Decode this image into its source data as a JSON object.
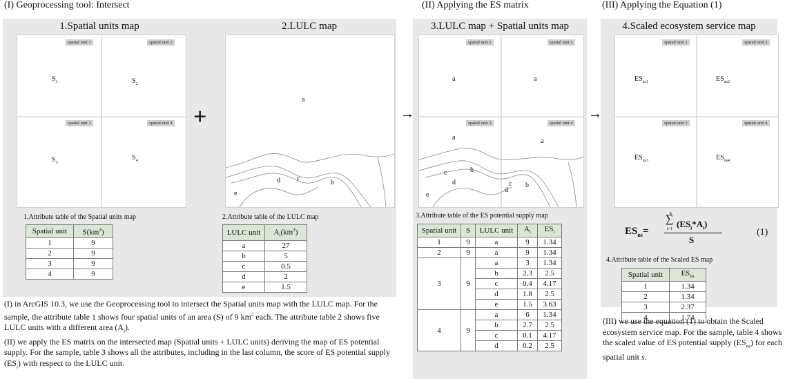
{
  "headers": {
    "h1": "(I) Geoprocessing tool: Intersect",
    "h2": "(II) Applying the ES matrix",
    "h3": "(III) Applying the Equation (1)"
  },
  "panel1": {
    "map1_title": "1.Spatial units map",
    "map2_title": "2.LULC map",
    "table1_title": "1.Attribute table of the Spatial units map",
    "table2_title": "2.Attribute table of the LULC map"
  },
  "panel2": {
    "map3_title": "3.LULC map + Spatial units map",
    "table3_title": "3.Attribute table of the ES potential supply map"
  },
  "panel3": {
    "map4_title": "4.Scaled ecosystem service map",
    "table4_title": "4.Attribute table of the Scaled ES map"
  },
  "tags": [
    "spatial unit 1",
    "spatial unit 2",
    "spatial unit 3",
    "spatial unit 4"
  ],
  "map1_labels": [
    "S1",
    "S2",
    "S3",
    "S4"
  ],
  "map2_labels": {
    "a": "a",
    "b": "b",
    "c": "c",
    "d": "d",
    "e": "e"
  },
  "map4_labels": [
    "ESns1",
    "ESns2",
    "ESns3",
    "ESns4"
  ],
  "table1": {
    "headers": [
      "Spatial unit",
      "S(km²)"
    ],
    "rows": [
      [
        "1",
        "9"
      ],
      [
        "2",
        "9"
      ],
      [
        "3",
        "9"
      ],
      [
        "4",
        "9"
      ]
    ]
  },
  "table2": {
    "headers": [
      "LULC unit",
      "Ai(km²)"
    ],
    "rows": [
      [
        "a",
        "27"
      ],
      [
        "b",
        "5"
      ],
      [
        "c",
        "0.5"
      ],
      [
        "d",
        "2"
      ],
      [
        "e",
        "1.5"
      ]
    ]
  },
  "table3": {
    "headers": [
      "Spatial unit",
      "S",
      "LULC unit",
      "Ai",
      "ESi"
    ],
    "groups": [
      {
        "unit": "1",
        "s": "9",
        "rows": [
          [
            "a",
            "9",
            "1.34"
          ]
        ]
      },
      {
        "unit": "2",
        "s": "9",
        "rows": [
          [
            "a",
            "9",
            "1.34"
          ]
        ]
      },
      {
        "unit": "3",
        "s": "9",
        "rows": [
          [
            "a",
            "3",
            "1.34"
          ],
          [
            "b",
            "2.3",
            "2.5"
          ],
          [
            "c",
            "0.4",
            "4.17"
          ],
          [
            "d",
            "1.8",
            "2.5"
          ],
          [
            "e",
            "1.5",
            "3.63"
          ]
        ]
      },
      {
        "unit": "4",
        "s": "9",
        "rows": [
          [
            "a",
            "6",
            "1.34"
          ],
          [
            "b",
            "2.7",
            "2.5"
          ],
          [
            "c",
            "0.1",
            "4.17"
          ],
          [
            "d",
            "0.2",
            "2.5"
          ]
        ]
      }
    ]
  },
  "table4": {
    "headers": [
      "Spatial unit",
      "ESns"
    ],
    "rows": [
      [
        "1",
        "1.34"
      ],
      [
        "2",
        "1.34"
      ],
      [
        "3",
        "2.37"
      ],
      [
        "4",
        "1.74"
      ]
    ]
  },
  "equation": {
    "lhs": "ESns",
    "sum_top": "s",
    "sum_bottom": "i=1",
    "numerator": "(ESi*Ai)",
    "denominator": "S",
    "number": "(1)"
  },
  "text_left": "(I) in ArcGIS 10.3, we use the Geoprocessing tool to intersect the Spatial units map with the LULC map. For the sample, the attribute table 1 shows four spatial units of an area (S) of 9 km² each. The attribute table 2 shows five LULC units with a different area (Ai). (II) we apply the ES matrix on the intersected map (Spatial units + LULC units) deriving the map of ES potential supply. For the sample, table 3 shows all the attributes, including in the last column, the score of ES potential supply (ESi) with respect to the LULC unit.",
  "text_right": "(III) we use the equation (1) to obtain the Scaled ecosystem service map. For the sample, table 4 shows the scaled value of ES potential supply (ESns) for each spatial unit s.",
  "symbols": {
    "plus": "+",
    "arrow": "→"
  }
}
